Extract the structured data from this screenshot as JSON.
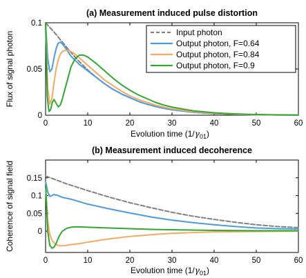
{
  "chart_data": [
    {
      "type": "line",
      "title": "(a) Measurement induced pulse distortion",
      "xlabel": "Evolution time (1/γ01)",
      "xlabel_main": "Evolution time (1/",
      "xlabel_symbol": "γ",
      "xlabel_sub": "01",
      "xlabel_end": ")",
      "ylabel": "Flux of signal photon",
      "xlim": [
        0,
        60
      ],
      "ylim": [
        0,
        0.1
      ],
      "xticks": [
        0,
        10,
        20,
        30,
        40,
        50,
        60
      ],
      "yticks": [
        0,
        0.05,
        0.1
      ],
      "ytick_labels": [
        "0",
        "0.05",
        "0.1"
      ],
      "grid": false,
      "legend_position": "top-right",
      "series": [
        {
          "name": "Input photon",
          "color": "#808080",
          "dash": true,
          "x": [
            0,
            2,
            4,
            6,
            8,
            10,
            12,
            14,
            16,
            18,
            20,
            22,
            24,
            26,
            28,
            30,
            35,
            40,
            45,
            50,
            55,
            60
          ],
          "y": [
            0.1,
            0.09,
            0.079,
            0.068,
            0.058,
            0.049,
            0.041,
            0.034,
            0.028,
            0.023,
            0.019,
            0.015,
            0.012,
            0.0095,
            0.0075,
            0.0059,
            0.0032,
            0.0017,
            0.0009,
            0.0005,
            0.0003,
            0.0002
          ]
        },
        {
          "name": "Output photon, F=0.64",
          "color": "#4a9be0",
          "dash": false,
          "x": [
            0,
            0.5,
            1,
            1.5,
            2,
            2.5,
            3,
            3.5,
            4,
            5,
            6,
            8,
            10,
            12,
            14,
            16,
            18,
            20,
            22,
            24,
            26,
            28,
            30,
            35,
            40,
            45,
            50,
            55,
            60
          ],
          "y": [
            0.1,
            0.062,
            0.047,
            0.05,
            0.062,
            0.072,
            0.078,
            0.079,
            0.077,
            0.071,
            0.064,
            0.055,
            0.048,
            0.041,
            0.034,
            0.028,
            0.023,
            0.019,
            0.015,
            0.012,
            0.0095,
            0.0075,
            0.0059,
            0.0032,
            0.0017,
            0.0009,
            0.0005,
            0.0003,
            0.0002
          ]
        },
        {
          "name": "Output photon, F=0.84",
          "color": "#f5a860",
          "dash": false,
          "x": [
            0,
            0.5,
            1,
            1.5,
            2,
            2.5,
            3,
            3.5,
            4,
            4.5,
            5,
            5.5,
            6,
            7,
            8,
            10,
            12,
            14,
            16,
            18,
            20,
            22,
            24,
            26,
            28,
            30,
            35,
            40,
            45,
            50,
            55,
            60
          ],
          "y": [
            0.1,
            0.03,
            0.012,
            0.018,
            0.035,
            0.05,
            0.06,
            0.066,
            0.069,
            0.07,
            0.07,
            0.07,
            0.069,
            0.066,
            0.062,
            0.054,
            0.046,
            0.038,
            0.032,
            0.026,
            0.021,
            0.017,
            0.014,
            0.011,
            0.0088,
            0.007,
            0.0038,
            0.002,
            0.001,
            0.0006,
            0.0003,
            0.0002
          ]
        },
        {
          "name": "Output photon, F=0.9",
          "color": "#2ea82e",
          "dash": false,
          "x": [
            0,
            0.4,
            0.8,
            1.2,
            1.6,
            2,
            2.5,
            3,
            3.5,
            4,
            5,
            6,
            7,
            8,
            9,
            10,
            12,
            14,
            16,
            18,
            20,
            22,
            24,
            26,
            28,
            30,
            35,
            40,
            45,
            50,
            55,
            60
          ],
          "y": [
            0.1,
            0.02,
            0.004,
            0.006,
            0.014,
            0.017,
            0.013,
            0.009,
            0.011,
            0.018,
            0.035,
            0.052,
            0.061,
            0.065,
            0.065,
            0.063,
            0.056,
            0.048,
            0.04,
            0.033,
            0.027,
            0.022,
            0.018,
            0.014,
            0.011,
            0.0088,
            0.0048,
            0.0026,
            0.0014,
            0.0007,
            0.0004,
            0.0002
          ]
        }
      ]
    },
    {
      "type": "line",
      "title": "(b) Measurement induced decoherence",
      "xlabel": "Evolution time (1/γ01)",
      "xlabel_main": "Evolution time (1/",
      "xlabel_symbol": "γ",
      "xlabel_sub": "01",
      "xlabel_end": ")",
      "ylabel": "Coherence of signal field",
      "xlim": [
        0,
        60
      ],
      "ylim": [
        -0.06,
        0.2
      ],
      "xticks": [
        0,
        10,
        20,
        30,
        40,
        50,
        60
      ],
      "yticks": [
        0,
        0.05,
        0.1,
        0.15
      ],
      "ytick_labels": [
        "0",
        "0.05",
        "0.1",
        "0.15"
      ],
      "grid": false,
      "series": [
        {
          "name": "Input photon",
          "color": "#808080",
          "dash": true,
          "x": [
            0,
            5,
            10,
            15,
            20,
            25,
            30,
            35,
            40,
            45,
            50,
            55,
            60
          ],
          "y": [
            0.155,
            0.133,
            0.114,
            0.096,
            0.08,
            0.066,
            0.053,
            0.042,
            0.033,
            0.025,
            0.018,
            0.013,
            0.01
          ]
        },
        {
          "name": "Output photon, F=0.64",
          "color": "#4a9be0",
          "dash": false,
          "x": [
            0,
            0.5,
            1,
            1.5,
            2,
            3,
            4,
            6,
            8,
            10,
            15,
            20,
            25,
            30,
            35,
            40,
            45,
            50,
            55,
            60
          ],
          "y": [
            0.14,
            0.11,
            0.098,
            0.1,
            0.103,
            0.1,
            0.095,
            0.09,
            0.083,
            0.076,
            0.063,
            0.051,
            0.04,
            0.031,
            0.024,
            0.018,
            0.013,
            0.009,
            0.007,
            0.006
          ]
        },
        {
          "name": "Output photon, F=0.84",
          "color": "#f5a860",
          "dash": false,
          "x": [
            0,
            0.5,
            1,
            1.5,
            2,
            2.5,
            3,
            3.5,
            4,
            5,
            6,
            8,
            10,
            15,
            20,
            25,
            30,
            35,
            40,
            50,
            60
          ],
          "y": [
            0.13,
            0.03,
            -0.01,
            -0.025,
            -0.033,
            -0.038,
            -0.04,
            -0.041,
            -0.041,
            -0.04,
            -0.038,
            -0.035,
            -0.031,
            -0.022,
            -0.015,
            -0.01,
            -0.006,
            -0.004,
            -0.002,
            -0.001,
            0
          ]
        },
        {
          "name": "Output photon, F=0.9",
          "color": "#2ea82e",
          "dash": false,
          "x": [
            0,
            0.5,
            1,
            1.5,
            2,
            2.5,
            3,
            3.5,
            4,
            5,
            6,
            7,
            8,
            10,
            15,
            20,
            25,
            30,
            40,
            50,
            60
          ],
          "y": [
            0.13,
            0.0,
            -0.04,
            -0.048,
            -0.045,
            -0.035,
            -0.02,
            -0.008,
            0.0,
            0.008,
            0.011,
            0.012,
            0.012,
            0.011,
            0.009,
            0.007,
            0.005,
            0.004,
            0.002,
            0.001,
            0.001
          ]
        }
      ]
    }
  ]
}
